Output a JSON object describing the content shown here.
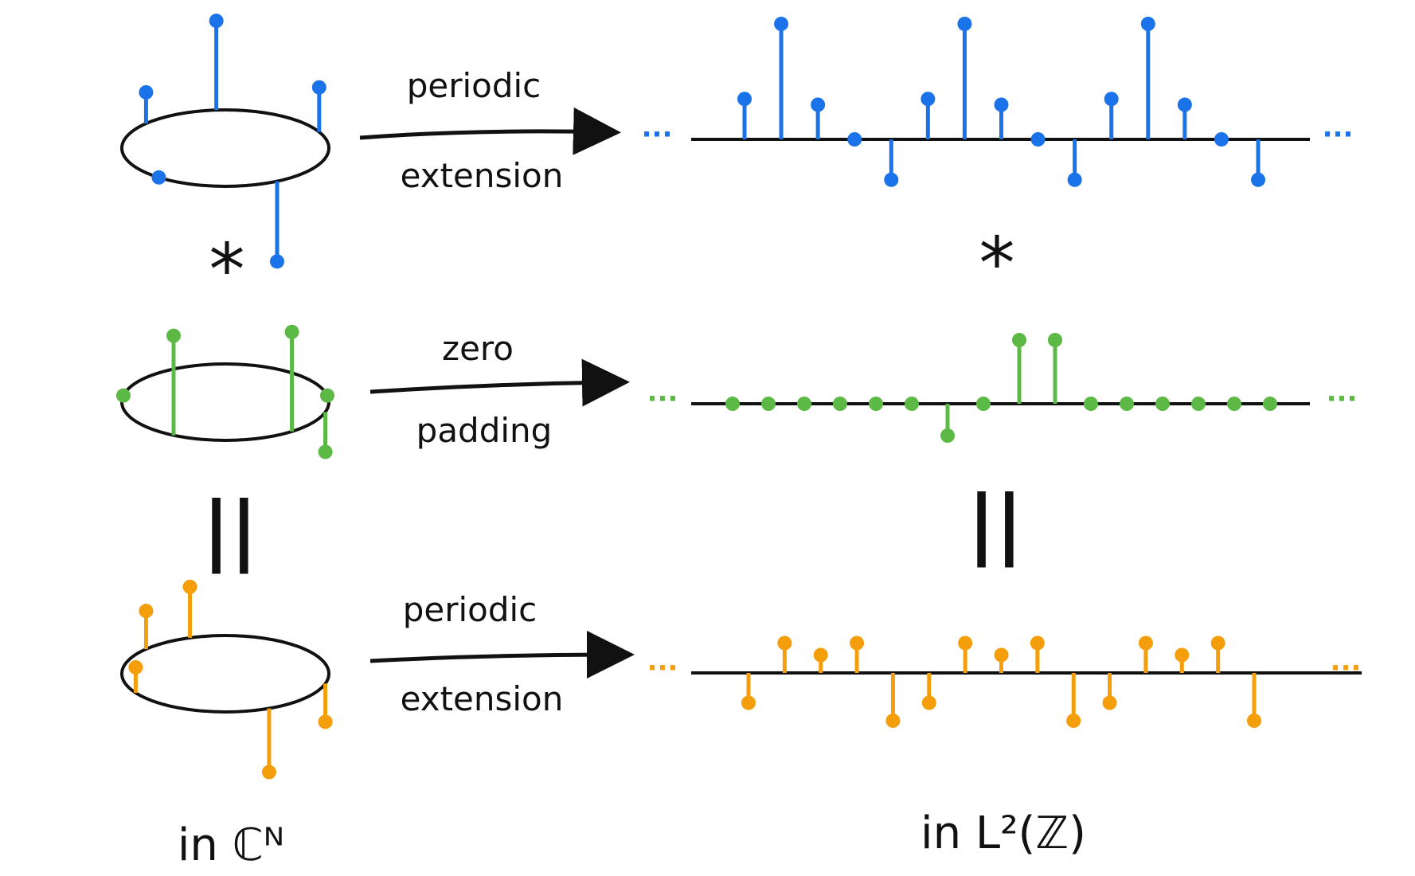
{
  "colors": {
    "blue": "#1a73e8",
    "green": "#5cb946",
    "orange": "#f59e0b",
    "ink": "#111111"
  },
  "labels": {
    "top_arrow": [
      "periodic",
      "extension"
    ],
    "middle_arrow": [
      "zero",
      "padding"
    ],
    "bottom_arrow": [
      "periodic",
      "extension"
    ],
    "convolution_symbol": "*",
    "equals_symbol": "||",
    "left_space": "in ℂᴺ",
    "right_space": "in L²(ℤ)",
    "ellipsis": "···"
  },
  "signals": {
    "blue_circle": [
      0.35,
      1.0,
      0.5,
      -0.9,
      0.0
    ],
    "green_circle": [
      1.0,
      1.0,
      -0.4,
      0.0,
      0.0
    ],
    "orange_circle": [
      0.8,
      -0.6,
      -1.0,
      0.6,
      0.4
    ],
    "blue_line": [
      0.35,
      1.0,
      0.3,
      0.0,
      -0.35,
      0.35,
      1.0,
      0.3,
      0.0,
      -0.35,
      0.35,
      1.0,
      0.3,
      0.0,
      -0.35
    ],
    "green_line": [
      0,
      0,
      0,
      0,
      0,
      0,
      -0.4,
      0,
      0.8,
      0.8,
      0,
      0,
      0,
      0,
      0,
      0
    ],
    "orange_line": [
      -0.5,
      0.5,
      0.3,
      0.5,
      -0.8,
      -0.5,
      0.5,
      0.3,
      0.5,
      -0.8,
      -0.5,
      0.5,
      0.3,
      0.5,
      -0.8
    ]
  }
}
